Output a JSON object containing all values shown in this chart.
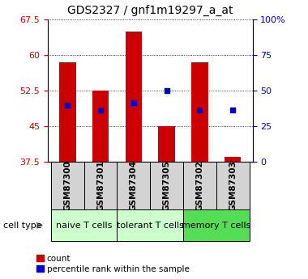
{
  "title": "GDS2327 / gnf1m19297_a_at",
  "samples": [
    "GSM87300",
    "GSM87301",
    "GSM87304",
    "GSM87305",
    "GSM87302",
    "GSM87303"
  ],
  "count_values": [
    58.5,
    52.5,
    65.0,
    45.0,
    58.5,
    38.5
  ],
  "percentile_values": [
    49.5,
    48.5,
    50.0,
    52.5,
    48.5,
    48.5
  ],
  "bar_bottom": 37.5,
  "bar_color": "#cc0000",
  "pct_color": "#0000cc",
  "ylim_left": [
    37.5,
    67.5
  ],
  "ylim_right": [
    0,
    100
  ],
  "yticks_left": [
    37.5,
    45.0,
    52.5,
    60.0,
    67.5
  ],
  "yticks_right": [
    0,
    25,
    50,
    75,
    100
  ],
  "ytick_labels_left": [
    "37.5",
    "45",
    "52.5",
    "60",
    "67.5"
  ],
  "ytick_labels_right": [
    "0",
    "25",
    "50",
    "75",
    "100%"
  ],
  "group_spans": [
    [
      0,
      2,
      "naive T cells",
      "#ccffcc"
    ],
    [
      2,
      4,
      "tolerant T cells",
      "#ccffcc"
    ],
    [
      4,
      6,
      "memory T cells",
      "#55dd55"
    ]
  ],
  "cell_type_label": "cell type",
  "legend_count": "count",
  "legend_pct": "percentile rank within the sample",
  "bar_width": 0.5,
  "background_color": "#ffffff",
  "title_fontsize": 10,
  "tick_fontsize": 8,
  "sample_fontsize": 7.5,
  "group_fontsize": 8
}
